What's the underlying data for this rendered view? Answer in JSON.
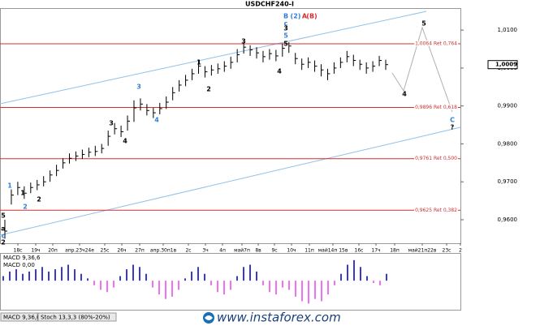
{
  "chart_data": {
    "type": "ohlc",
    "title": "USDCHF240-I",
    "color": "#000000",
    "ylim": [
      0.9538,
      1.0158
    ],
    "yticks": [
      {
        "value": 1.01,
        "label": "1,0100"
      },
      {
        "value": 1.0,
        "label": "1,0000"
      },
      {
        "value": 0.99,
        "label": "0,9900"
      },
      {
        "value": 0.98,
        "label": "0,9800"
      },
      {
        "value": 0.97,
        "label": "0,9700"
      },
      {
        "value": 0.96,
        "label": "0,9600"
      }
    ],
    "current_price": {
      "value": 1.0009,
      "label": "1,0009"
    },
    "levels": [
      {
        "value": 1.0064,
        "label": "1,0064 Ret 0,764"
      },
      {
        "value": 0.9896,
        "label": "0,9896 Ret 0,618"
      },
      {
        "value": 0.9761,
        "label": "0,9761 Ret 0,500"
      },
      {
        "value": 0.9625,
        "label": "0,9625 Ret 0,382"
      }
    ],
    "level_color": "#d03030",
    "high": [
      0.96,
      0.968,
      0.97,
      0.9688,
      0.9698,
      0.9705,
      0.9715,
      0.973,
      0.9745,
      0.9762,
      0.9775,
      0.978,
      0.9785,
      0.979,
      0.9795,
      0.98,
      0.9835,
      0.9855,
      0.9848,
      0.9875,
      0.9915,
      0.992,
      0.9905,
      0.9895,
      0.9908,
      0.9925,
      0.995,
      0.9968,
      0.9982,
      0.9998,
      1.002,
      1.0005,
      1.0008,
      1.0012,
      1.0018,
      1.003,
      1.005,
      1.0068,
      1.006,
      1.0055,
      1.0045,
      1.005,
      1.0048,
      1.0065,
      1.0068,
      1.004,
      1.0025,
      1.0028,
      1.002,
      1.001,
      0.9998,
      1.0015,
      1.0028,
      1.0045,
      1.0035,
      1.0022,
      1.0015,
      1.0018,
      1.0032,
      1.0022
    ],
    "low": [
      0.955,
      0.964,
      0.9665,
      0.9655,
      0.967,
      0.9678,
      0.9688,
      0.97,
      0.9715,
      0.9735,
      0.9748,
      0.9755,
      0.976,
      0.9765,
      0.9768,
      0.9775,
      0.9795,
      0.9825,
      0.9818,
      0.9835,
      0.9858,
      0.9888,
      0.9875,
      0.9868,
      0.9878,
      0.9892,
      0.9915,
      0.9938,
      0.9952,
      0.9968,
      0.9985,
      0.9975,
      0.998,
      0.9985,
      0.999,
      0.9998,
      1.0015,
      1.0038,
      1.0032,
      1.0025,
      1.0015,
      1.0022,
      1.0018,
      1.003,
      1.004,
      1.001,
      0.9995,
      1.0,
      0.999,
      0.9978,
      0.9968,
      0.9985,
      1.0,
      1.0015,
      1.0005,
      0.9995,
      0.9985,
      0.999,
      1.0005,
      0.9995
    ],
    "close": [
      0.957,
      0.9665,
      0.9685,
      0.967,
      0.9685,
      0.9692,
      0.97,
      0.9718,
      0.973,
      0.975,
      0.9762,
      0.9768,
      0.9772,
      0.9778,
      0.978,
      0.9788,
      0.982,
      0.984,
      0.9832,
      0.986,
      0.9895,
      0.9905,
      0.9888,
      0.9882,
      0.9893,
      0.991,
      0.9935,
      0.9955,
      0.9968,
      0.9985,
      1.0005,
      0.999,
      0.9995,
      0.9998,
      1.0005,
      1.0015,
      1.0035,
      1.0055,
      1.0048,
      1.004,
      1.003,
      1.0038,
      1.0032,
      1.0052,
      1.0058,
      1.0025,
      1.001,
      1.0015,
      1.0005,
      0.9995,
      0.9985,
      1.0,
      1.0015,
      1.003,
      1.002,
      1.001,
      1.0,
      1.0005,
      1.002,
      1.0009
    ],
    "xlabels": [
      "18c",
      "19ч",
      "20п",
      "апр.23ч24е",
      "25c",
      "26ч",
      "27п",
      "апр.30п1в",
      "2c",
      "3ч",
      "4п",
      "май7п",
      "8в",
      "9c",
      "10ч",
      "11п",
      "май14п 15в",
      "16c",
      "17ч",
      "18п",
      "май21п22в",
      "23c",
      "2"
    ],
    "annotations": [
      {
        "text": "B",
        "color": "#2f7fd8"
      },
      {
        "text": "(2)",
        "color": "#2f7fd8"
      },
      {
        "text": "A",
        "color": "#d03030"
      },
      {
        "text": "(B)",
        "color": "#d03030"
      },
      {
        "text": "c",
        "color": "#2f7fd8"
      },
      {
        "text": "3",
        "color": "#000000"
      },
      {
        "text": "5",
        "color": "#2f7fd8"
      },
      {
        "text": "5",
        "color": "#000000"
      },
      {
        "text": "3",
        "color": "#000000"
      },
      {
        "text": "4",
        "color": "#000000"
      },
      {
        "text": "1",
        "color": "#000000"
      },
      {
        "text": "2",
        "color": "#000000"
      },
      {
        "text": "3",
        "color": "#2f7fd8"
      },
      {
        "text": "4",
        "color": "#2f7fd8"
      },
      {
        "text": "3",
        "color": "#000000"
      },
      {
        "text": "4",
        "color": "#000000"
      },
      {
        "text": "1",
        "color": "#2f7fd8"
      },
      {
        "text": "2",
        "color": "#2f7fd8"
      },
      {
        "text": "1",
        "color": "#000000"
      },
      {
        "text": "2",
        "color": "#000000"
      },
      {
        "text": "5",
        "color": "#000000"
      },
      {
        "text": "4",
        "color": "#000000"
      },
      {
        "text": "C",
        "color": "#2f7fd8"
      },
      {
        "text": "?",
        "color": "#000000"
      },
      {
        "text": "5",
        "color": "#000000"
      },
      {
        "text": "a",
        "color": "#000000"
      },
      {
        "text": "c",
        "color": "#2f7fd8"
      },
      {
        "text": "2",
        "color": "#000000"
      }
    ],
    "indicator": {
      "type": "bar",
      "name": "MACD 9,36,6",
      "value_label": "MACD 0,00",
      "ylim": [
        -12,
        10
      ],
      "positive_color": "#3a3acc",
      "negative_color": "#f070f0",
      "values": [
        2,
        4,
        5,
        3,
        4,
        5,
        6,
        4,
        5,
        6,
        7,
        5,
        3,
        1,
        -2,
        -4,
        -5,
        -3,
        2,
        5,
        7,
        6,
        3,
        -3,
        -6,
        -8,
        -7,
        -4,
        1,
        4,
        6,
        3,
        -2,
        -5,
        -6,
        -4,
        2,
        6,
        7,
        4,
        -2,
        -5,
        -6,
        -3,
        -4,
        -7,
        -9,
        -10,
        -8,
        -9,
        -6,
        -2,
        3,
        7,
        9,
        6,
        2,
        -1,
        -2,
        3
      ]
    },
    "tabs": [
      "MACD 9,36,6",
      "Stoch 13,3,3 (80%-20%)"
    ],
    "watermark": "www.instaforex.com"
  }
}
